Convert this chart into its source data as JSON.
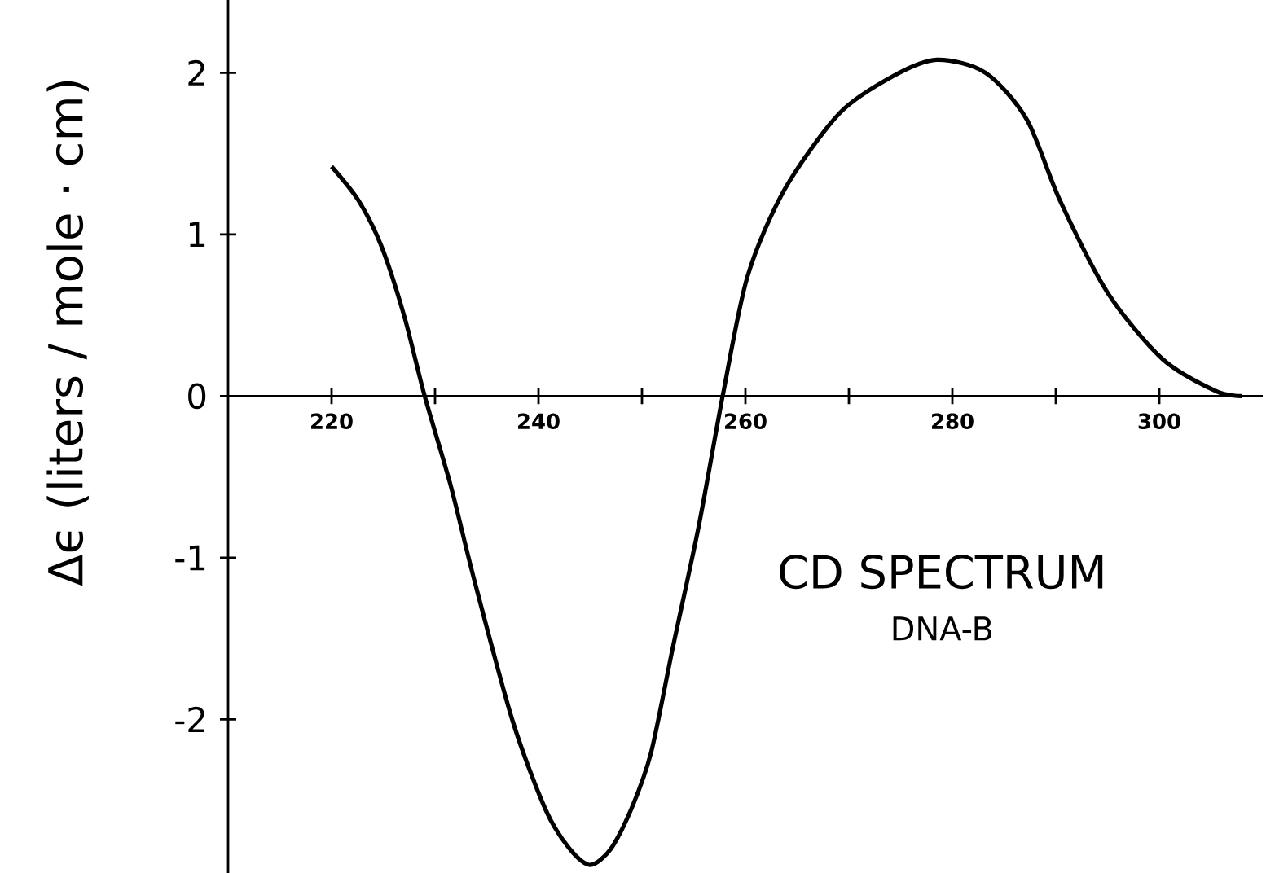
{
  "chart_data": {
    "type": "line",
    "ylabel": "Δϵ (liters / mole · cm)",
    "annotations": [
      "CD SPECTRUM",
      "DNA-B"
    ],
    "x": [
      220,
      222.6,
      224.8,
      227,
      229,
      231.5,
      233.8,
      237.5,
      240.7,
      243,
      245,
      247,
      249,
      250.9,
      253,
      255.5,
      257.8,
      260.2,
      263.8,
      269.1,
      274.3,
      278.5,
      283.2,
      287.2,
      290.4,
      295,
      300.3,
      305.5,
      308
    ],
    "series": [
      {
        "color": "#000000",
        "values": [
          1.42,
          1.21,
          0.93,
          0.5,
          0,
          -0.55,
          -1.14,
          -2.01,
          -2.56,
          -2.8,
          -2.9,
          -2.8,
          -2.55,
          -2.2,
          -1.55,
          -0.8,
          0,
          0.74,
          1.28,
          1.75,
          1.98,
          2.08,
          2.0,
          1.71,
          1.21,
          0.64,
          0.23,
          0.03,
          0
        ]
      }
    ],
    "xlim": [
      210,
      310
    ],
    "ylim": [
      -2.95,
      2.45
    ],
    "xticks": [
      220,
      {
        "value": 230,
        "label": null
      },
      240,
      {
        "value": 250,
        "label": null
      },
      260,
      {
        "value": 270,
        "label": null
      },
      280,
      {
        "value": 290,
        "label": null
      },
      300
    ],
    "yticks": [
      -2,
      -1,
      0,
      1,
      2
    ],
    "line_style": "solid",
    "marker": "none"
  }
}
